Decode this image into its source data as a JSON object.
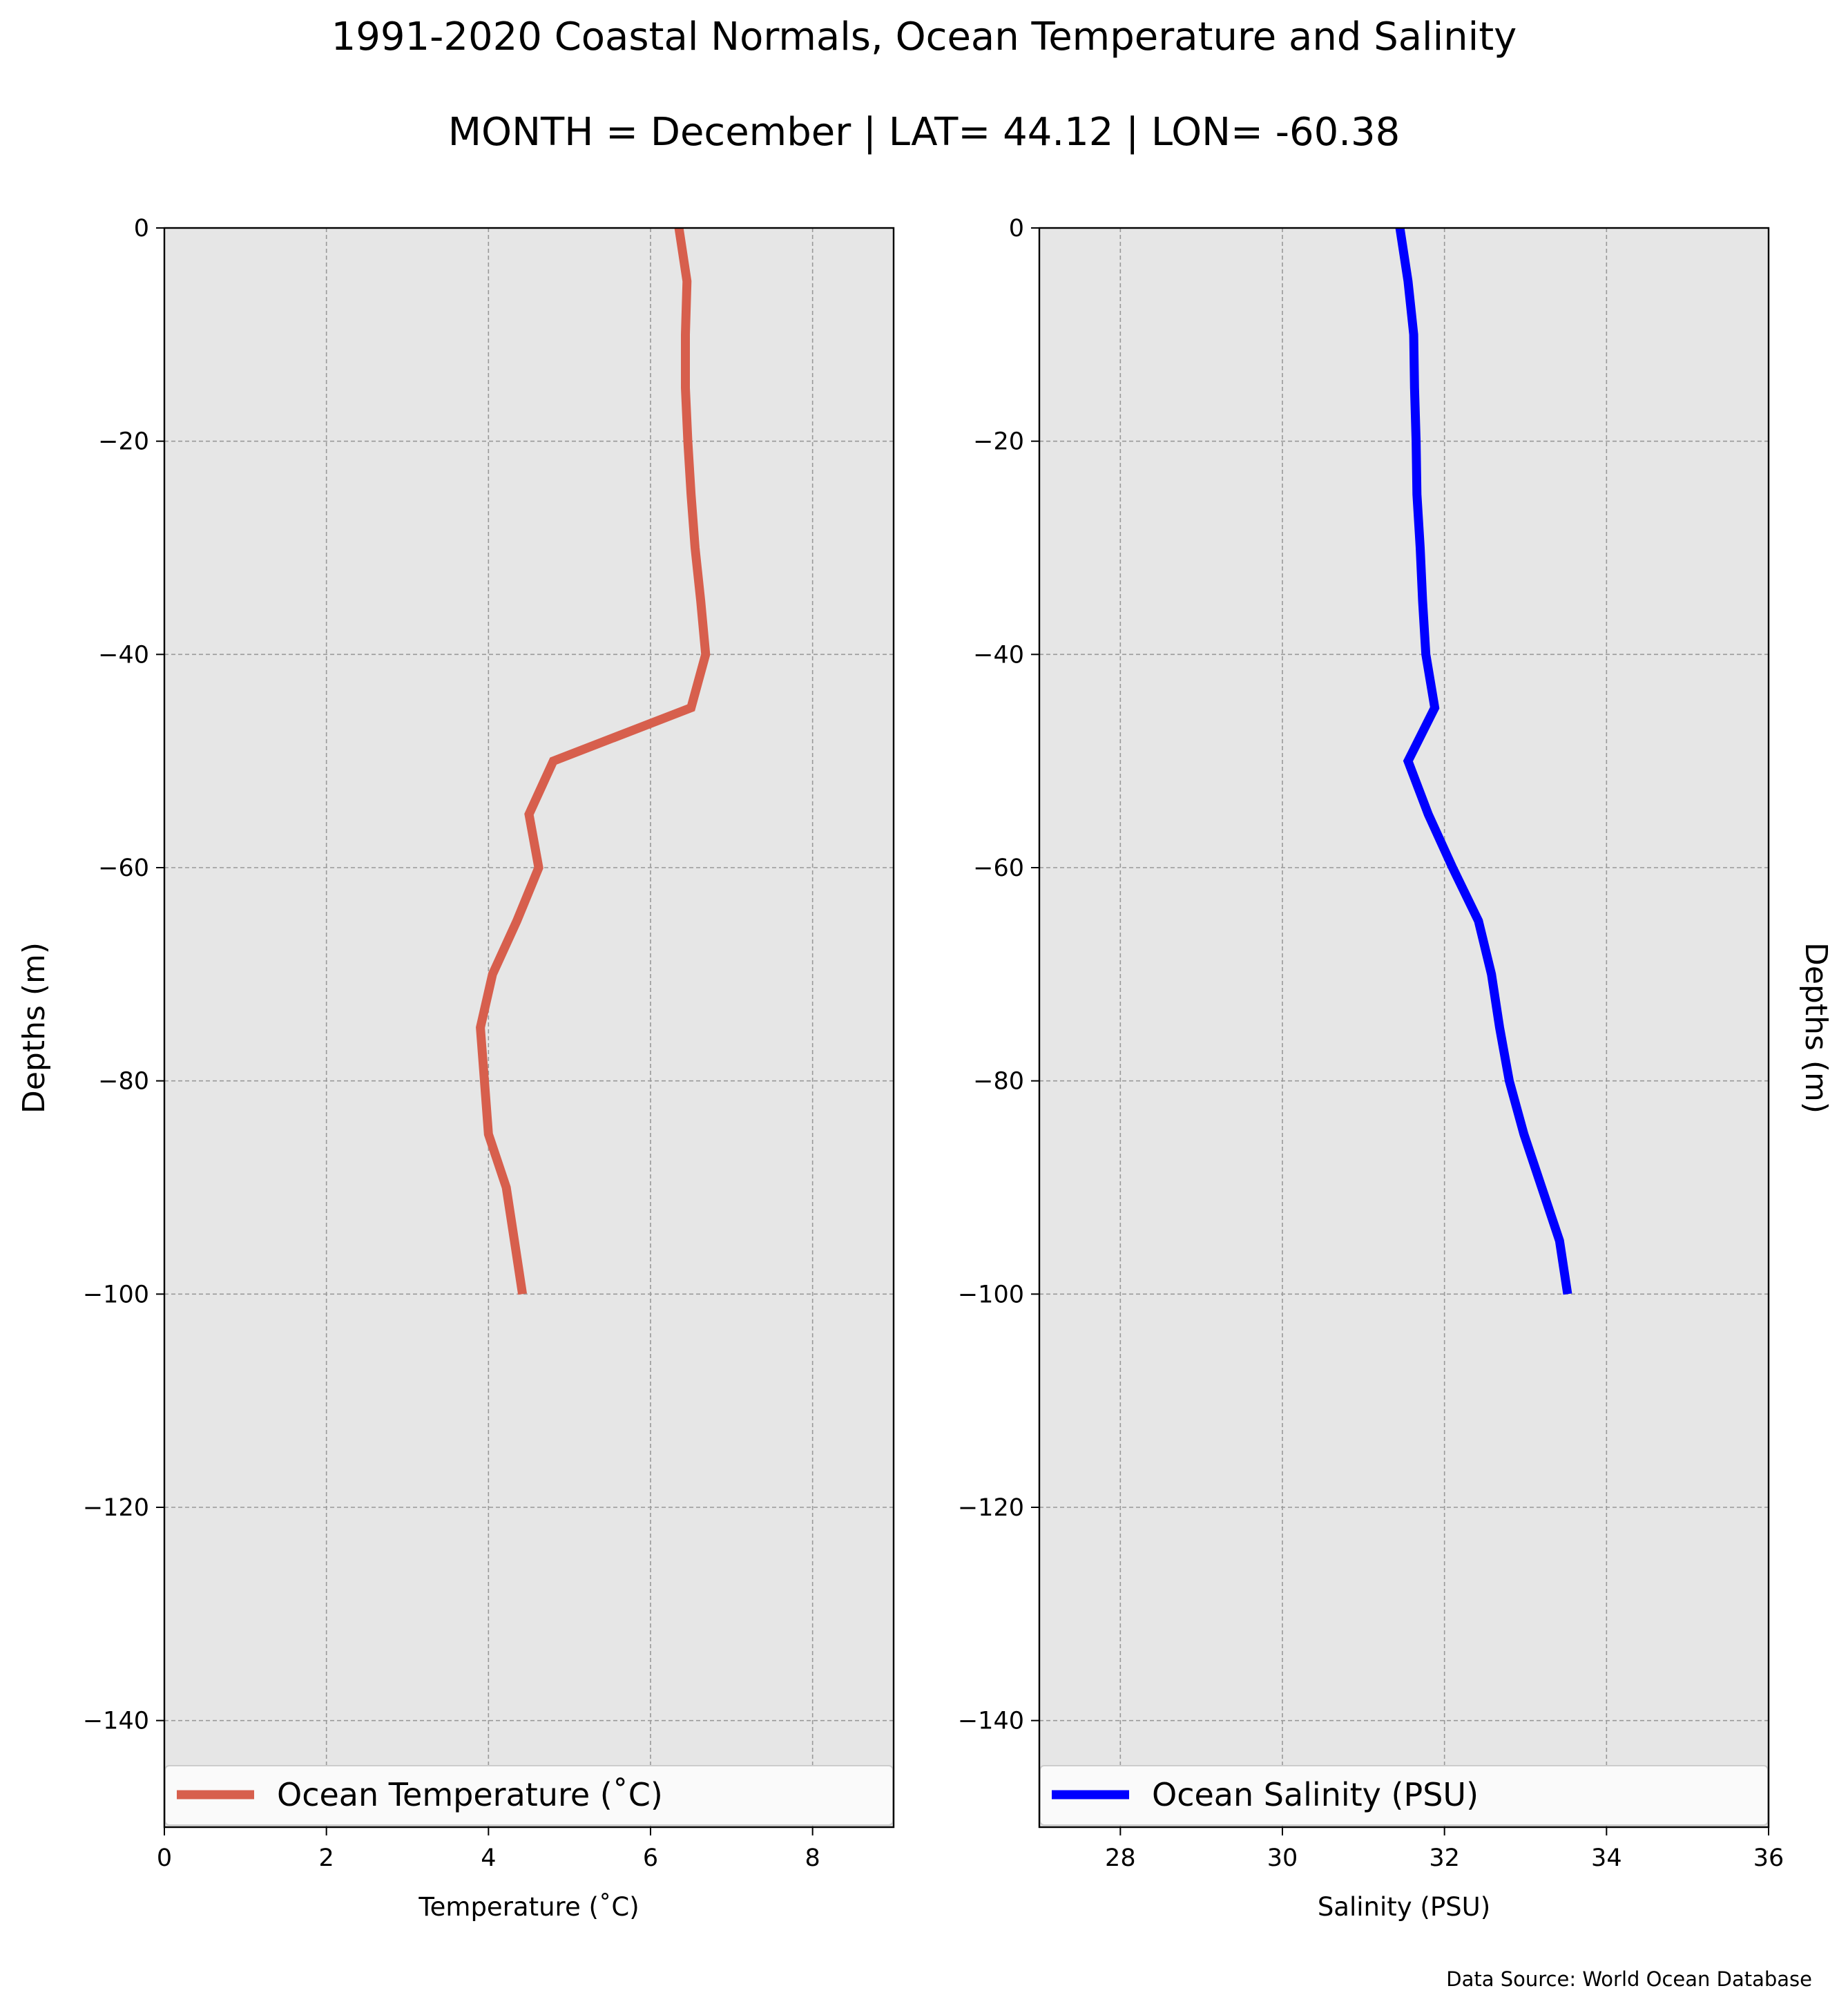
{
  "title": "1991-2020 Coastal Normals, Ocean Temperature and Salinity",
  "subtitle": "MONTH = December | LAT= 44.12 | LON= -60.38",
  "footer": "Data Source: World Ocean Database",
  "colors": {
    "temperature": "#d75f4d",
    "salinity": "#0000ff",
    "plot_bg": "#e6e6e6",
    "grid": "#999999"
  },
  "chart_data": [
    {
      "type": "line",
      "xlabel": "Temperature ($^\\circ$C)",
      "xlabel_display": "Temperature (˚C)",
      "ylabel": "Depths (m)",
      "xlim": [
        0,
        9
      ],
      "ylim": [
        -150,
        0
      ],
      "xticks": [
        0,
        2,
        4,
        6,
        8
      ],
      "yticks": [
        0,
        -20,
        -40,
        -60,
        -80,
        -100,
        -120,
        -140
      ],
      "ytick_labels": [
        "0",
        "−20",
        "−40",
        "−60",
        "−80",
        "−100",
        "−120",
        "−140"
      ],
      "grid": true,
      "legend_position": "lower",
      "series": [
        {
          "name": "Ocean Temperature (˚C)",
          "color": "#d75f4d",
          "x": [
            6.35,
            6.45,
            6.43,
            6.43,
            6.46,
            6.5,
            6.55,
            6.62,
            6.68,
            6.5,
            4.8,
            4.5,
            4.62,
            4.35,
            4.05,
            3.9,
            3.95,
            4.0,
            4.22,
            4.32,
            4.42
          ],
          "y": [
            0,
            -5,
            -10,
            -15,
            -20,
            -25,
            -30,
            -35,
            -40,
            -45,
            -50,
            -55,
            -60,
            -65,
            -70,
            -75,
            -80,
            -85,
            -90,
            -95,
            -100
          ]
        }
      ]
    },
    {
      "type": "line",
      "xlabel": "Salinity (PSU)",
      "ylabel": "Depths (m)",
      "xlim": [
        27,
        36
      ],
      "ylim": [
        -150,
        0
      ],
      "xticks": [
        28,
        30,
        32,
        34,
        36
      ],
      "yticks": [
        0,
        -20,
        -40,
        -60,
        -80,
        -100,
        -120,
        -140
      ],
      "ytick_labels": [
        "0",
        "−20",
        "−40",
        "−60",
        "−80",
        "−100",
        "−120",
        "−140"
      ],
      "grid": true,
      "legend_position": "lower",
      "series": [
        {
          "name": "Ocean Salinity (PSU)",
          "color": "#0000ff",
          "x": [
            31.45,
            31.55,
            31.62,
            31.63,
            31.65,
            31.66,
            31.7,
            31.73,
            31.77,
            31.88,
            31.55,
            31.8,
            32.1,
            32.42,
            32.58,
            32.68,
            32.8,
            32.98,
            33.2,
            33.42,
            33.52
          ],
          "y": [
            0,
            -5,
            -10,
            -15,
            -20,
            -25,
            -30,
            -35,
            -40,
            -45,
            -50,
            -55,
            -60,
            -65,
            -70,
            -75,
            -80,
            -85,
            -90,
            -95,
            -100
          ]
        }
      ]
    }
  ]
}
